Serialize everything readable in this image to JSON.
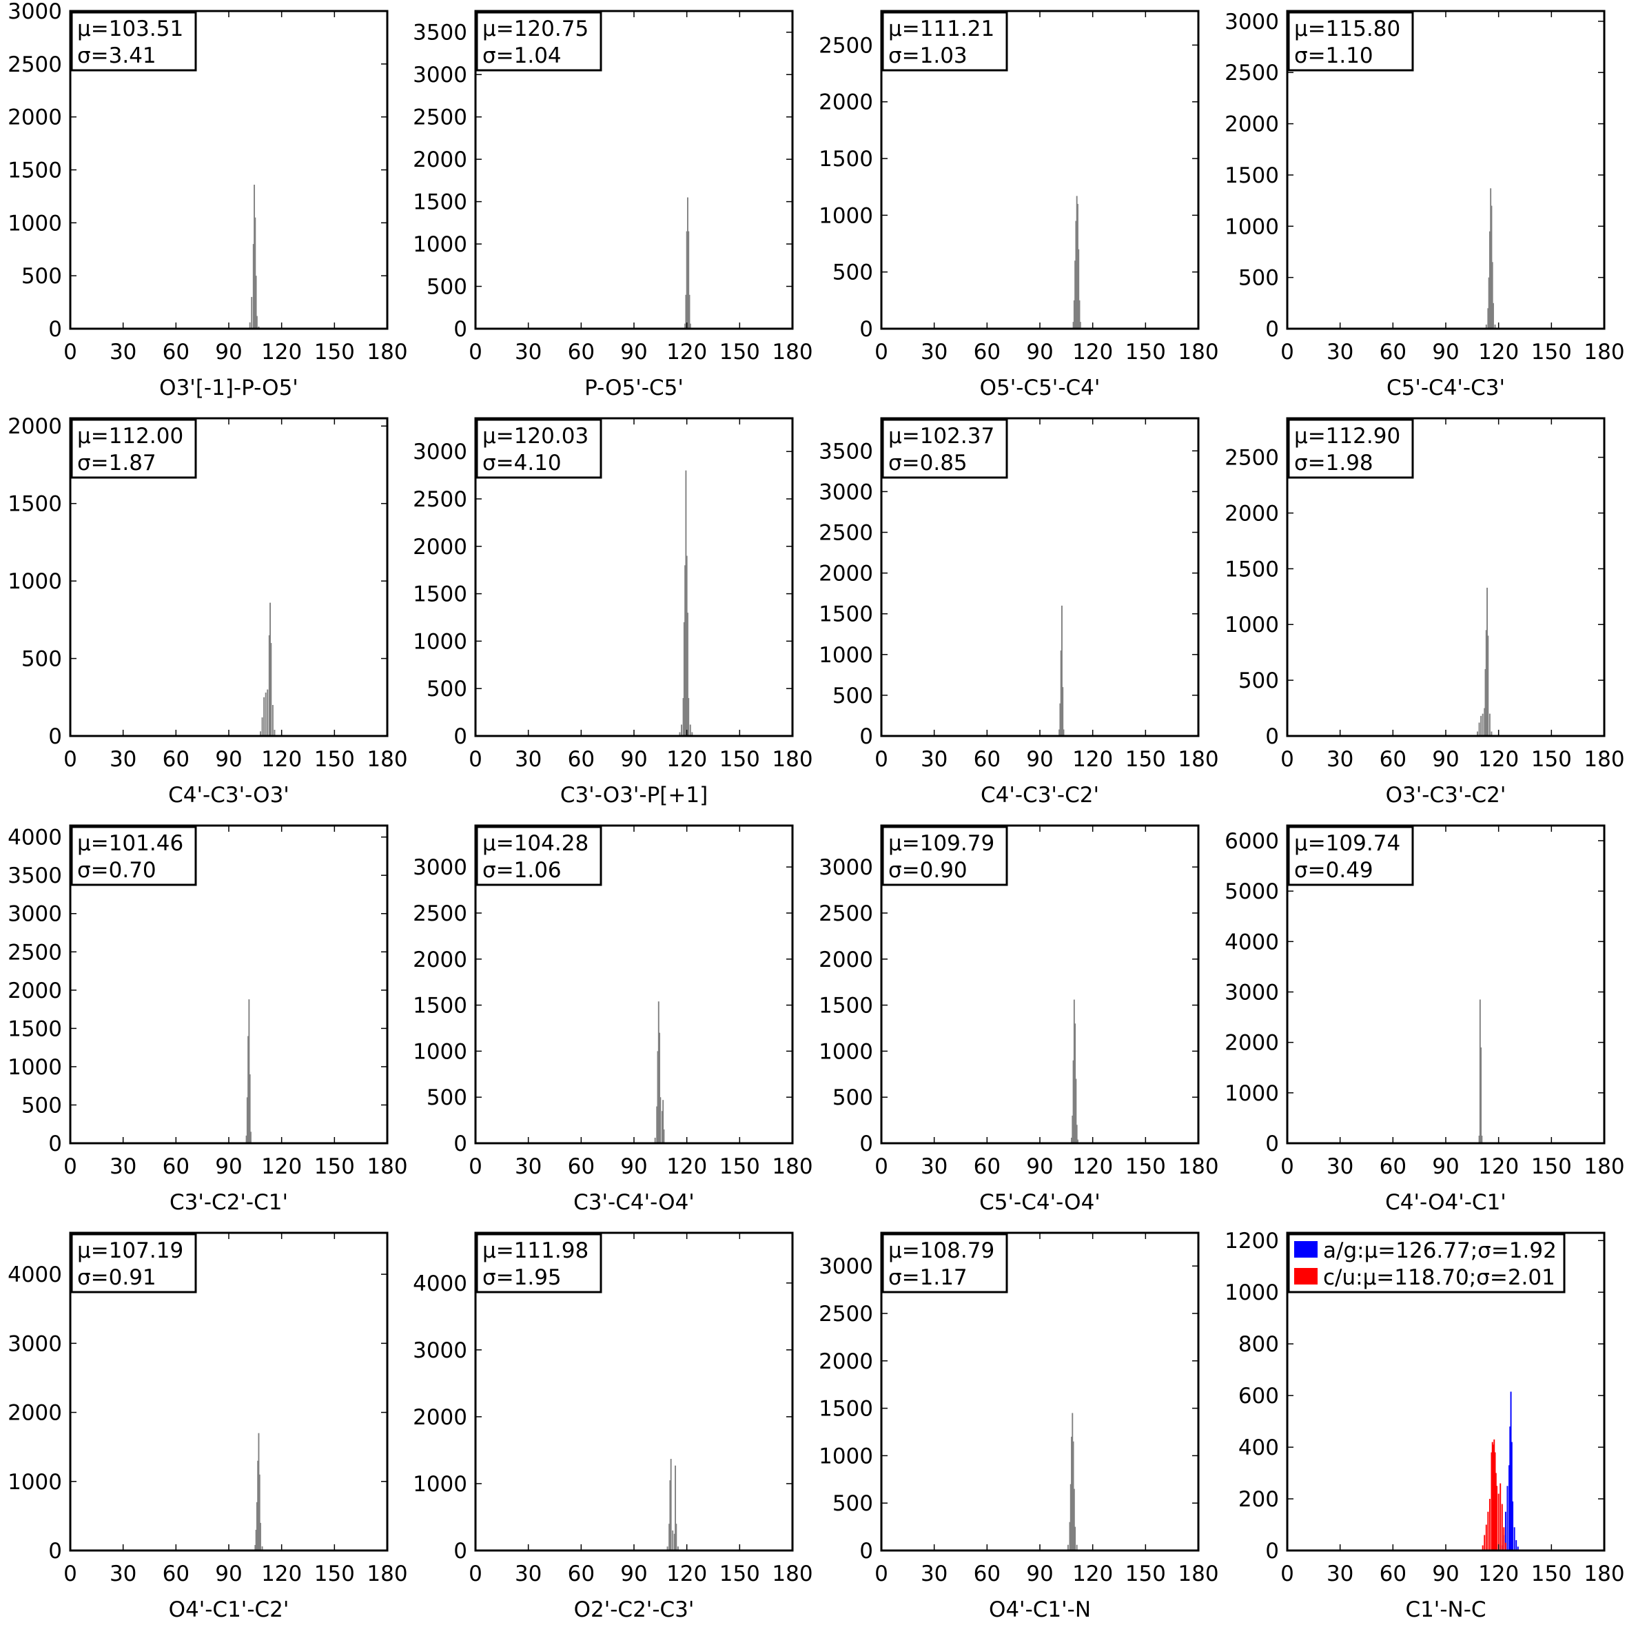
{
  "chart_data": [
    {
      "type": "bar",
      "xlabel": "O3'[-1]-P-O5'",
      "xlim": [
        0,
        180
      ],
      "xticks": [
        0,
        30,
        60,
        90,
        120,
        150,
        180
      ],
      "ylim": [
        0,
        3000
      ],
      "yticks": [
        0,
        500,
        1000,
        1500,
        2000,
        2500,
        3000
      ],
      "legend_lines": [
        "μ=103.51",
        "σ=3.41"
      ],
      "series": [
        {
          "color": "#808080",
          "x": [
            102,
            103,
            104,
            104.5,
            105,
            105.5,
            106,
            107
          ],
          "values": [
            60,
            300,
            800,
            1360,
            1050,
            500,
            120,
            20
          ]
        }
      ]
    },
    {
      "type": "bar",
      "xlabel": "P-O5'-C5'",
      "xlim": [
        0,
        180
      ],
      "xticks": [
        0,
        30,
        60,
        90,
        120,
        150,
        180
      ],
      "ylim": [
        0,
        3750
      ],
      "yticks": [
        0,
        500,
        1000,
        1500,
        2000,
        2500,
        3000,
        3500
      ],
      "legend_lines": [
        "μ=120.75",
        "σ=1.04"
      ],
      "series": [
        {
          "color": "#808080",
          "x": [
            119,
            119.5,
            120,
            120.5,
            121,
            121.5,
            122
          ],
          "values": [
            60,
            400,
            1150,
            1550,
            1150,
            400,
            60
          ]
        }
      ]
    },
    {
      "type": "bar",
      "xlabel": "O5'-C5'-C4'",
      "xlim": [
        0,
        180
      ],
      "xticks": [
        0,
        30,
        60,
        90,
        120,
        150,
        180
      ],
      "ylim": [
        0,
        2800
      ],
      "yticks": [
        0,
        500,
        1000,
        1500,
        2000,
        2500
      ],
      "legend_lines": [
        "μ=111.21",
        "σ=1.03"
      ],
      "series": [
        {
          "color": "#808080",
          "x": [
            109,
            109.5,
            110,
            110.5,
            111,
            111.5,
            112,
            112.5,
            113
          ],
          "values": [
            60,
            250,
            600,
            950,
            1170,
            1100,
            700,
            250,
            60
          ]
        }
      ]
    },
    {
      "type": "bar",
      "xlabel": "C5'-C4'-C3'",
      "xlim": [
        0,
        180
      ],
      "xticks": [
        0,
        30,
        60,
        90,
        120,
        150,
        180
      ],
      "ylim": [
        0,
        3100
      ],
      "yticks": [
        0,
        500,
        1000,
        1500,
        2000,
        2500,
        3000
      ],
      "legend_lines": [
        "μ=115.80",
        "σ=1.10"
      ],
      "series": [
        {
          "color": "#808080",
          "x": [
            113,
            114,
            114.5,
            115,
            115.5,
            116,
            116.5,
            117,
            118
          ],
          "values": [
            40,
            200,
            500,
            950,
            1370,
            1200,
            650,
            250,
            40
          ]
        }
      ]
    },
    {
      "type": "bar",
      "xlabel": "C4'-C3'-O3'",
      "xlim": [
        0,
        180
      ],
      "xticks": [
        0,
        30,
        60,
        90,
        120,
        150,
        180
      ],
      "ylim": [
        0,
        2050
      ],
      "yticks": [
        0,
        500,
        1000,
        1500,
        2000
      ],
      "legend_lines": [
        "μ=112.00",
        "σ=1.87"
      ],
      "series": [
        {
          "color": "#808080",
          "x": [
            108,
            109,
            110,
            111,
            112,
            113,
            113.5,
            114,
            115,
            116
          ],
          "values": [
            30,
            120,
            250,
            280,
            300,
            650,
            860,
            600,
            200,
            40
          ]
        }
      ]
    },
    {
      "type": "bar",
      "xlabel": "C3'-O3'-P[+1]",
      "xlim": [
        0,
        180
      ],
      "xticks": [
        0,
        30,
        60,
        90,
        120,
        150,
        180
      ],
      "ylim": [
        0,
        3350
      ],
      "yticks": [
        0,
        500,
        1000,
        1500,
        2000,
        2500,
        3000
      ],
      "legend_lines": [
        "μ=120.03",
        "σ=4.10"
      ],
      "series": [
        {
          "color": "#808080",
          "x": [
            116,
            117,
            118,
            118.5,
            119,
            119.5,
            120,
            120.5,
            121,
            122,
            123
          ],
          "values": [
            40,
            120,
            400,
            1200,
            1800,
            2800,
            1900,
            1300,
            400,
            120,
            40
          ]
        }
      ]
    },
    {
      "type": "bar",
      "xlabel": "C4'-C3'-C2'",
      "xlim": [
        0,
        180
      ],
      "xticks": [
        0,
        30,
        60,
        90,
        120,
        150,
        180
      ],
      "ylim": [
        0,
        3900
      ],
      "yticks": [
        0,
        500,
        1000,
        1500,
        2000,
        2500,
        3000,
        3500
      ],
      "legend_lines": [
        "μ=102.37",
        "σ=0.85"
      ],
      "series": [
        {
          "color": "#808080",
          "x": [
            101,
            101.5,
            102,
            102.5,
            103,
            103.5
          ],
          "values": [
            80,
            400,
            1050,
            1600,
            600,
            80
          ]
        }
      ]
    },
    {
      "type": "bar",
      "xlabel": "O3'-C3'-C2'",
      "xlim": [
        0,
        180
      ],
      "xticks": [
        0,
        30,
        60,
        90,
        120,
        150,
        180
      ],
      "ylim": [
        0,
        2850
      ],
      "yticks": [
        0,
        500,
        1000,
        1500,
        2000,
        2500
      ],
      "legend_lines": [
        "μ=112.90",
        "σ=1.98"
      ],
      "series": [
        {
          "color": "#808080",
          "x": [
            108,
            109,
            110,
            111,
            112,
            112.5,
            113,
            113.5,
            114,
            115,
            116
          ],
          "values": [
            40,
            120,
            180,
            200,
            250,
            600,
            950,
            1330,
            900,
            200,
            40
          ]
        }
      ]
    },
    {
      "type": "bar",
      "xlabel": "C3'-C2'-C1'",
      "xlim": [
        0,
        180
      ],
      "xticks": [
        0,
        30,
        60,
        90,
        120,
        150,
        180
      ],
      "ylim": [
        0,
        4150
      ],
      "yticks": [
        0,
        500,
        1000,
        1500,
        2000,
        2500,
        3000,
        3500,
        4000
      ],
      "legend_lines": [
        "μ=101.46",
        "σ=0.70"
      ],
      "series": [
        {
          "color": "#808080",
          "x": [
            100,
            100.5,
            101,
            101.5,
            102,
            102.5
          ],
          "values": [
            100,
            600,
            1400,
            1880,
            900,
            150
          ]
        }
      ]
    },
    {
      "type": "bar",
      "xlabel": "C3'-C4'-O4'",
      "xlim": [
        0,
        180
      ],
      "xticks": [
        0,
        30,
        60,
        90,
        120,
        150,
        180
      ],
      "ylim": [
        0,
        3450
      ],
      "yticks": [
        0,
        500,
        1000,
        1500,
        2000,
        2500,
        3000
      ],
      "legend_lines": [
        "μ=104.28",
        "σ=1.06"
      ],
      "series": [
        {
          "color": "#808080",
          "x": [
            102,
            103,
            103.5,
            104,
            104.5,
            105,
            106,
            106.5,
            107
          ],
          "values": [
            60,
            400,
            1000,
            1540,
            1200,
            500,
            350,
            470,
            150
          ]
        }
      ]
    },
    {
      "type": "bar",
      "xlabel": "C5'-C4'-O4'",
      "xlim": [
        0,
        180
      ],
      "xticks": [
        0,
        30,
        60,
        90,
        120,
        150,
        180
      ],
      "ylim": [
        0,
        3450
      ],
      "yticks": [
        0,
        500,
        1000,
        1500,
        2000,
        2500,
        3000
      ],
      "legend_lines": [
        "μ=109.79",
        "σ=0.90"
      ],
      "series": [
        {
          "color": "#808080",
          "x": [
            108,
            108.5,
            109,
            109.5,
            110,
            110.5,
            111,
            111.5
          ],
          "values": [
            60,
            300,
            900,
            1560,
            1300,
            700,
            200,
            40
          ]
        }
      ]
    },
    {
      "type": "bar",
      "xlabel": "C4'-O4'-C1'",
      "xlim": [
        0,
        180
      ],
      "xticks": [
        0,
        30,
        60,
        90,
        120,
        150,
        180
      ],
      "ylim": [
        0,
        6300
      ],
      "yticks": [
        0,
        1000,
        2000,
        3000,
        4000,
        5000,
        6000
      ],
      "legend_lines": [
        "μ=109.74",
        "σ=0.49"
      ],
      "series": [
        {
          "color": "#808080",
          "x": [
            109,
            109.5,
            110,
            110.5
          ],
          "values": [
            150,
            2850,
            1900,
            150
          ]
        }
      ]
    },
    {
      "type": "bar",
      "xlabel": "O4'-C1'-C2'",
      "xlim": [
        0,
        180
      ],
      "xticks": [
        0,
        30,
        60,
        90,
        120,
        150,
        180
      ],
      "ylim": [
        0,
        4600
      ],
      "yticks": [
        0,
        1000,
        2000,
        3000,
        4000
      ],
      "legend_lines": [
        "μ=107.19",
        "σ=0.91"
      ],
      "series": [
        {
          "color": "#808080",
          "x": [
            105,
            105.5,
            106,
            106.5,
            107,
            107.5,
            108,
            109
          ],
          "values": [
            80,
            300,
            700,
            1300,
            1700,
            1100,
            400,
            60
          ]
        }
      ]
    },
    {
      "type": "bar",
      "xlabel": "O2'-C2'-C3'",
      "xlim": [
        0,
        180
      ],
      "xticks": [
        0,
        30,
        60,
        90,
        120,
        150,
        180
      ],
      "ylim": [
        0,
        4750
      ],
      "yticks": [
        0,
        1000,
        2000,
        3000,
        4000
      ],
      "legend_lines": [
        "μ=111.98",
        "σ=1.95"
      ],
      "series": [
        {
          "color": "#808080",
          "x": [
            109,
            110,
            110.5,
            111,
            112,
            113,
            113.5,
            114,
            115
          ],
          "values": [
            60,
            400,
            1050,
            1370,
            300,
            250,
            1270,
            400,
            60
          ]
        }
      ]
    },
    {
      "type": "bar",
      "xlabel": "O4'-C1'-N",
      "xlim": [
        0,
        180
      ],
      "xticks": [
        0,
        30,
        60,
        90,
        120,
        150,
        180
      ],
      "ylim": [
        0,
        3350
      ],
      "yticks": [
        0,
        500,
        1000,
        1500,
        2000,
        2500,
        3000
      ],
      "legend_lines": [
        "μ=108.79",
        "σ=1.17"
      ],
      "series": [
        {
          "color": "#808080",
          "x": [
            106,
            107,
            107.5,
            108,
            108.5,
            109,
            109.5,
            110,
            111
          ],
          "values": [
            60,
            300,
            700,
            1200,
            1450,
            1150,
            650,
            250,
            60
          ]
        }
      ]
    },
    {
      "type": "bar",
      "xlabel": "C1'-N-C",
      "xlim": [
        0,
        180
      ],
      "xticks": [
        0,
        30,
        60,
        90,
        120,
        150,
        180
      ],
      "ylim": [
        0,
        1230
      ],
      "yticks": [
        0,
        200,
        400,
        600,
        800,
        1000,
        1200
      ],
      "legend_entries": [
        {
          "label": "a/g:μ=126.77;σ=1.92",
          "color": "#0000ff"
        },
        {
          "label": "c/u:μ=118.70;σ=2.01",
          "color": "#ff0000"
        }
      ],
      "series": [
        {
          "name": "a/g",
          "color": "#0000ff",
          "x": [
            122,
            123,
            124,
            125,
            126,
            126.5,
            127,
            127.5,
            128,
            129,
            130,
            131
          ],
          "values": [
            20,
            60,
            150,
            250,
            330,
            480,
            615,
            420,
            190,
            90,
            40,
            15
          ]
        },
        {
          "name": "c/u",
          "color": "#ff0000",
          "x": [
            111,
            112,
            113,
            114,
            115,
            116,
            116.5,
            117,
            117.5,
            118,
            118.5,
            119,
            120,
            121,
            122,
            123,
            124
          ],
          "values": [
            20,
            60,
            100,
            150,
            200,
            380,
            420,
            410,
            430,
            380,
            300,
            250,
            220,
            260,
            180,
            90,
            30
          ]
        }
      ]
    }
  ]
}
